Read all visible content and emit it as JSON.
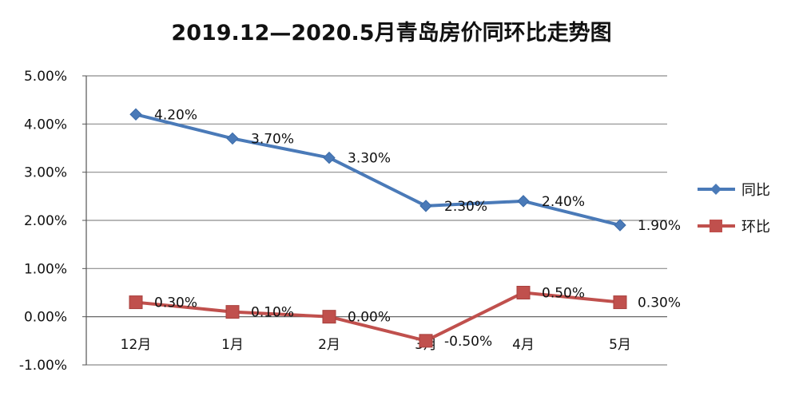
{
  "chart_data": {
    "type": "line",
    "title": "2019.12—2020.5月青岛房价同环比走势图",
    "categories": [
      "12月",
      "1月",
      "2月",
      "3月",
      "4月",
      "5月"
    ],
    "ylim": [
      -1.0,
      5.0
    ],
    "yticks": [
      5.0,
      4.0,
      3.0,
      2.0,
      1.0,
      0.0,
      -1.0
    ],
    "ytick_labels": [
      "5.00%",
      "4.00%",
      "3.00%",
      "2.00%",
      "1.00%",
      "0.00%",
      "-1.00%"
    ],
    "grid": true,
    "legend_position": "right",
    "series": [
      {
        "name": "同比",
        "marker": "diamond",
        "color": "#4a7ab8",
        "values": [
          4.2,
          3.7,
          3.3,
          2.3,
          2.4,
          1.9
        ],
        "labels": [
          "4.20%",
          "3.70%",
          "3.30%",
          "2.30%",
          "2.40%",
          "1.90%"
        ]
      },
      {
        "name": "环比",
        "marker": "square",
        "color": "#c0504d",
        "values": [
          0.3,
          0.1,
          0.0,
          -0.5,
          0.5,
          0.3
        ],
        "labels": [
          "0.30%",
          "0.10%",
          "0.00%",
          "-0.50%",
          "0.50%",
          "0.30%"
        ]
      }
    ]
  }
}
